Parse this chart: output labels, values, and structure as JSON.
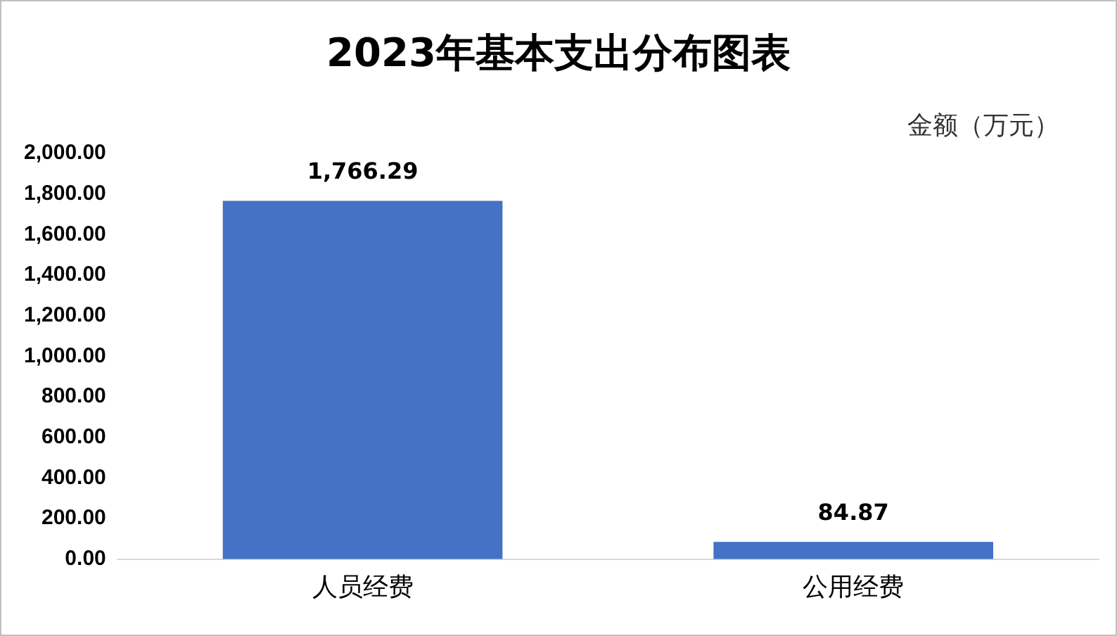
{
  "chart_data": {
    "type": "bar",
    "title": "2023年基本支出分布图表",
    "ylabel": "金额（万元）",
    "categories": [
      "人员经费",
      "公用经费"
    ],
    "values": [
      1766.29,
      84.87
    ],
    "color": "#4472c4",
    "value_labels": [
      "1,766.29",
      "84.87"
    ],
    "ylim": [
      0,
      2000
    ],
    "yticks": [
      {
        "value": 0,
        "label": "0.00"
      },
      {
        "value": 200,
        "label": "200.00"
      },
      {
        "value": 400,
        "label": "400.00"
      },
      {
        "value": 600,
        "label": "600.00"
      },
      {
        "value": 800,
        "label": "800.00"
      },
      {
        "value": 1000,
        "label": "1,000.00"
      },
      {
        "value": 1200,
        "label": "1,200.00"
      },
      {
        "value": 1400,
        "label": "1,400.00"
      },
      {
        "value": 1600,
        "label": "1,600.00"
      },
      {
        "value": 1800,
        "label": "1,800.00"
      },
      {
        "value": 2000,
        "label": "2,000.00"
      }
    ],
    "grid": false,
    "legend": false
  }
}
